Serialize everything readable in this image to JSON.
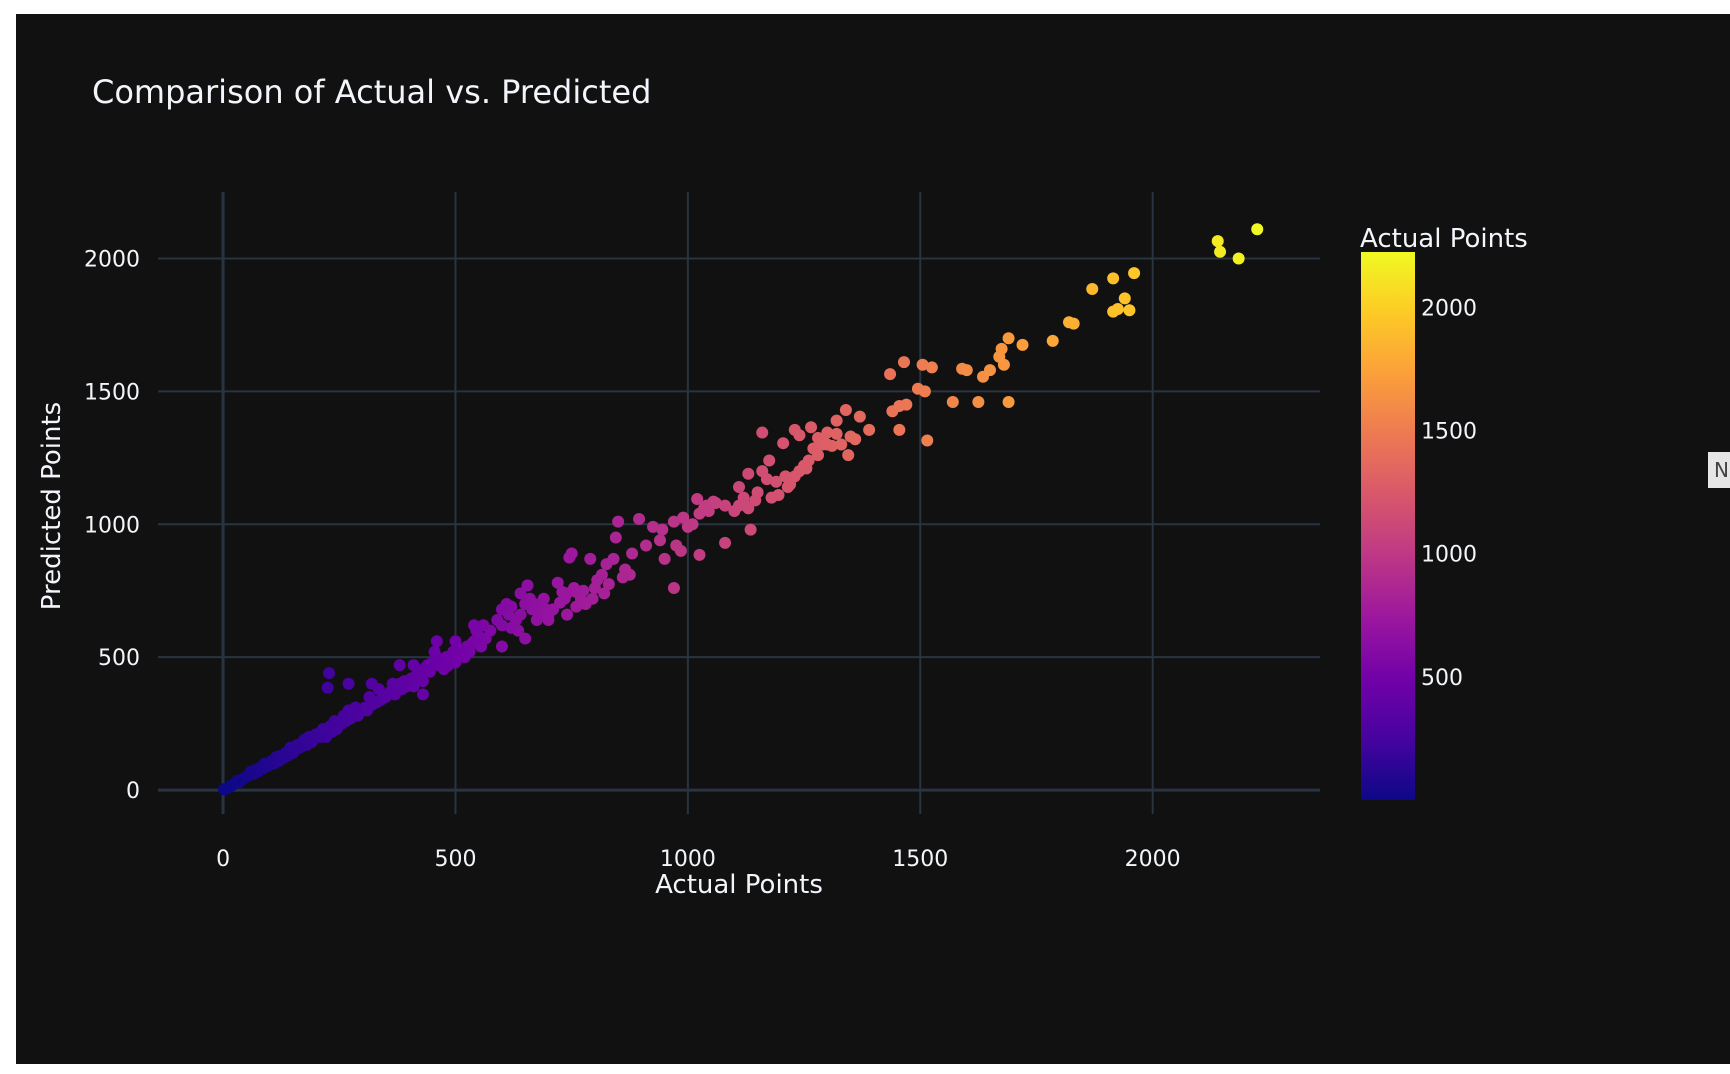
{
  "chart_data": {
    "type": "scatter",
    "title": "Comparison of Actual vs. Predicted",
    "xlabel": "Actual Points",
    "ylabel": "Predicted Points",
    "xlim": [
      -140,
      2360
    ],
    "ylim": [
      -90,
      2250
    ],
    "xticks": [
      0,
      500,
      1000,
      1500,
      2000
    ],
    "yticks": [
      0,
      500,
      1000,
      1500,
      2000
    ],
    "grid": true,
    "colorscale": "plasma",
    "colorbar": {
      "title": "Actual Points",
      "range": [
        0,
        2225
      ],
      "ticks": [
        500,
        1000,
        1500,
        2000
      ]
    },
    "colors": {
      "background": "#111111",
      "grid": "#283442",
      "text": "#f2f5fa"
    },
    "points": [
      [
        1435,
        1565
      ],
      [
        1465,
        1610
      ],
      [
        1470,
        1450
      ],
      [
        1495,
        1510
      ],
      [
        1505,
        1600
      ],
      [
        1510,
        1500
      ],
      [
        1525,
        1590
      ],
      [
        1515,
        1315
      ],
      [
        1440,
        1425
      ],
      [
        1455,
        1445
      ],
      [
        1455,
        1355
      ],
      [
        1590,
        1585
      ],
      [
        1600,
        1580
      ],
      [
        1570,
        1460
      ],
      [
        1625,
        1460
      ],
      [
        1635,
        1555
      ],
      [
        1650,
        1580
      ],
      [
        1670,
        1630
      ],
      [
        1680,
        1600
      ],
      [
        1675,
        1660
      ],
      [
        1690,
        1700
      ],
      [
        1690,
        1460
      ],
      [
        1720,
        1675
      ],
      [
        1785,
        1690
      ],
      [
        1820,
        1760
      ],
      [
        1830,
        1755
      ],
      [
        1870,
        1885
      ],
      [
        1915,
        1925
      ],
      [
        1915,
        1800
      ],
      [
        1925,
        1810
      ],
      [
        1940,
        1850
      ],
      [
        1950,
        1805
      ],
      [
        1960,
        1945
      ],
      [
        2140,
        2065
      ],
      [
        2145,
        2025
      ],
      [
        2185,
        2000
      ],
      [
        2225,
        2110
      ],
      [
        1160,
        1345
      ],
      [
        1205,
        1305
      ],
      [
        1230,
        1355
      ],
      [
        1240,
        1335
      ],
      [
        1265,
        1365
      ],
      [
        1280,
        1325
      ],
      [
        1300,
        1345
      ],
      [
        1310,
        1295
      ],
      [
        1330,
        1300
      ],
      [
        1340,
        1430
      ],
      [
        1345,
        1260
      ],
      [
        1350,
        1330
      ],
      [
        1370,
        1405
      ],
      [
        1390,
        1355
      ],
      [
        1215,
        1140
      ],
      [
        1240,
        1200
      ],
      [
        1255,
        1210
      ],
      [
        1270,
        1285
      ],
      [
        1290,
        1320
      ],
      [
        1320,
        1390
      ],
      [
        1360,
        1320
      ],
      [
        1160,
        1200
      ],
      [
        1175,
        1240
      ],
      [
        1195,
        1110
      ],
      [
        1220,
        1150
      ],
      [
        1260,
        1240
      ],
      [
        1290,
        1300
      ],
      [
        1120,
        1100
      ],
      [
        1110,
        1140
      ],
      [
        1130,
        1190
      ],
      [
        1150,
        1120
      ],
      [
        1145,
        1090
      ],
      [
        1130,
        1060
      ],
      [
        1120,
        1080
      ],
      [
        1110,
        1070
      ],
      [
        1135,
        980
      ],
      [
        1080,
        930
      ],
      [
        1055,
        1085
      ],
      [
        1040,
        1070
      ],
      [
        1045,
        1050
      ],
      [
        1035,
        1060
      ],
      [
        1025,
        1040
      ],
      [
        1020,
        1095
      ],
      [
        1010,
        1000
      ],
      [
        1000,
        990
      ],
      [
        990,
        1025
      ],
      [
        985,
        900
      ],
      [
        975,
        920
      ],
      [
        970,
        1010
      ],
      [
        1025,
        885
      ],
      [
        970,
        760
      ],
      [
        950,
        870
      ],
      [
        945,
        980
      ],
      [
        925,
        990
      ],
      [
        895,
        1020
      ],
      [
        880,
        890
      ],
      [
        875,
        810
      ],
      [
        865,
        830
      ],
      [
        850,
        1010
      ],
      [
        845,
        950
      ],
      [
        840,
        870
      ],
      [
        830,
        775
      ],
      [
        825,
        850
      ],
      [
        815,
        810
      ],
      [
        800,
        760
      ],
      [
        795,
        720
      ],
      [
        805,
        790
      ],
      [
        790,
        870
      ],
      [
        775,
        750
      ],
      [
        770,
        720
      ],
      [
        760,
        745
      ],
      [
        750,
        890
      ],
      [
        755,
        760
      ],
      [
        745,
        875
      ],
      [
        740,
        740
      ],
      [
        735,
        720
      ],
      [
        730,
        745
      ],
      [
        725,
        705
      ],
      [
        710,
        680
      ],
      [
        700,
        640
      ],
      [
        695,
        680
      ],
      [
        690,
        720
      ],
      [
        685,
        690
      ],
      [
        680,
        660
      ],
      [
        675,
        640
      ],
      [
        670,
        700
      ],
      [
        665,
        680
      ],
      [
        660,
        720
      ],
      [
        655,
        770
      ],
      [
        650,
        700
      ],
      [
        640,
        740
      ],
      [
        640,
        660
      ],
      [
        635,
        600
      ],
      [
        630,
        640
      ],
      [
        620,
        690
      ],
      [
        620,
        610
      ],
      [
        615,
        660
      ],
      [
        610,
        700
      ],
      [
        600,
        680
      ],
      [
        600,
        620
      ],
      [
        590,
        640
      ],
      [
        575,
        600
      ],
      [
        565,
        570
      ],
      [
        560,
        620
      ],
      [
        555,
        540
      ],
      [
        550,
        580
      ],
      [
        545,
        600
      ],
      [
        540,
        560
      ],
      [
        535,
        550
      ],
      [
        530,
        520
      ],
      [
        525,
        540
      ],
      [
        520,
        500
      ],
      [
        510,
        530
      ],
      [
        505,
        500
      ],
      [
        500,
        480
      ],
      [
        495,
        520
      ],
      [
        490,
        490
      ],
      [
        485,
        470
      ],
      [
        480,
        500
      ],
      [
        475,
        455
      ],
      [
        470,
        480
      ],
      [
        465,
        470
      ],
      [
        460,
        500
      ],
      [
        455,
        520
      ],
      [
        450,
        480
      ],
      [
        445,
        445
      ],
      [
        440,
        470
      ],
      [
        435,
        460
      ],
      [
        430,
        410
      ],
      [
        425,
        420
      ],
      [
        420,
        440
      ],
      [
        415,
        430
      ],
      [
        410,
        470
      ],
      [
        410,
        390
      ],
      [
        405,
        420
      ],
      [
        400,
        400
      ],
      [
        395,
        390
      ],
      [
        390,
        410
      ],
      [
        385,
        380
      ],
      [
        380,
        400
      ],
      [
        375,
        385
      ],
      [
        370,
        360
      ],
      [
        365,
        400
      ],
      [
        360,
        370
      ],
      [
        350,
        350
      ],
      [
        340,
        340
      ],
      [
        335,
        380
      ],
      [
        330,
        330
      ],
      [
        320,
        320
      ],
      [
        315,
        350
      ],
      [
        310,
        300
      ],
      [
        305,
        310
      ],
      [
        300,
        300
      ],
      [
        290,
        280
      ],
      [
        285,
        310
      ],
      [
        280,
        290
      ],
      [
        275,
        270
      ],
      [
        270,
        300
      ],
      [
        265,
        260
      ],
      [
        260,
        280
      ],
      [
        255,
        250
      ],
      [
        250,
        250
      ],
      [
        245,
        230
      ],
      [
        240,
        260
      ],
      [
        235,
        220
      ],
      [
        230,
        240
      ],
      [
        228,
        440
      ],
      [
        225,
        385
      ],
      [
        222,
        200
      ],
      [
        215,
        230
      ],
      [
        210,
        200
      ],
      [
        200,
        210
      ],
      [
        195,
        190
      ],
      [
        190,
        180
      ],
      [
        185,
        200
      ],
      [
        180,
        170
      ],
      [
        175,
        190
      ],
      [
        170,
        165
      ],
      [
        165,
        160
      ],
      [
        160,
        170
      ],
      [
        155,
        150
      ],
      [
        150,
        140
      ],
      [
        145,
        160
      ],
      [
        140,
        130
      ],
      [
        135,
        140
      ],
      [
        130,
        120
      ],
      [
        125,
        130
      ],
      [
        120,
        110
      ],
      [
        115,
        125
      ],
      [
        110,
        100
      ],
      [
        105,
        110
      ],
      [
        100,
        95
      ],
      [
        95,
        90
      ],
      [
        90,
        100
      ],
      [
        85,
        80
      ],
      [
        80,
        85
      ],
      [
        75,
        70
      ],
      [
        70,
        75
      ],
      [
        65,
        60
      ],
      [
        60,
        70
      ],
      [
        55,
        55
      ],
      [
        50,
        50
      ],
      [
        45,
        45
      ],
      [
        40,
        40
      ],
      [
        35,
        30
      ],
      [
        30,
        35
      ],
      [
        25,
        25
      ],
      [
        20,
        18
      ],
      [
        15,
        15
      ],
      [
        10,
        8
      ],
      [
        5,
        5
      ],
      [
        2,
        2
      ],
      [
        270,
        400
      ],
      [
        320,
        400
      ],
      [
        380,
        470
      ],
      [
        430,
        360
      ],
      [
        460,
        560
      ],
      [
        500,
        560
      ],
      [
        540,
        620
      ],
      [
        600,
        540
      ],
      [
        650,
        570
      ],
      [
        700,
        660
      ],
      [
        740,
        660
      ],
      [
        720,
        780
      ],
      [
        760,
        690
      ],
      [
        780,
        700
      ],
      [
        820,
        740
      ],
      [
        860,
        800
      ],
      [
        910,
        920
      ],
      [
        940,
        940
      ],
      [
        1060,
        1080
      ],
      [
        1080,
        1070
      ],
      [
        1100,
        1050
      ],
      [
        1170,
        1170
      ],
      [
        1180,
        1100
      ],
      [
        1190,
        1160
      ],
      [
        1210,
        1180
      ],
      [
        1230,
        1180
      ],
      [
        1250,
        1220
      ],
      [
        1280,
        1260
      ],
      [
        1300,
        1300
      ],
      [
        1320,
        1340
      ]
    ]
  }
}
